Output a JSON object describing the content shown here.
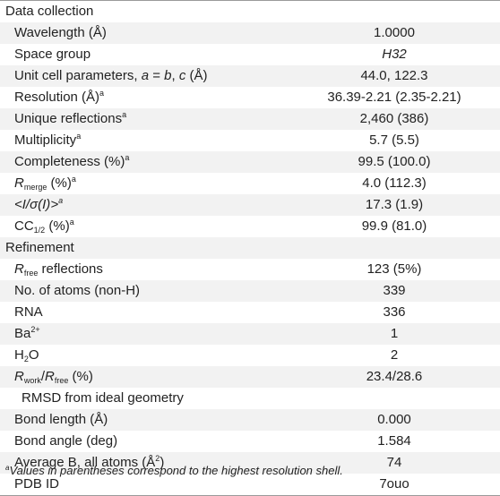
{
  "sections": {
    "data_collection": "Data collection",
    "refinement": "Refinement"
  },
  "rows": {
    "wavelength": {
      "label": "Wavelength (Å)",
      "value": "1.0000"
    },
    "space_group": {
      "label": "Space group",
      "value": "H32"
    },
    "unit_cell": {
      "label_pre": "Unit cell parameters, ",
      "a": "a",
      "eq": " = ",
      "b": "b",
      "comma": ", ",
      "c": "c",
      "unit": " (Å)",
      "value": "44.0, 122.3"
    },
    "resolution": {
      "label": "Resolution (Å)",
      "sup": "a",
      "value": "36.39-2.21 (2.35-2.21)"
    },
    "unique_reflections": {
      "label": "Unique reflections",
      "sup": "a",
      "value": "2,460 (386)"
    },
    "multiplicity": {
      "label": "Multiplicity",
      "sup": "a",
      "value": "5.7 (5.5)"
    },
    "completeness": {
      "label": "Completeness (%)",
      "sup": "a",
      "value": "99.5 (100.0)"
    },
    "rmerge": {
      "R": "R",
      "sub": "merge",
      "unit": " (%)",
      "sup": "a",
      "value": "4.0 (112.3)"
    },
    "i_sigma": {
      "open": "<",
      "body": "I/σ(I)",
      "close": ">",
      "sup": "a",
      "value": "17.3 (1.9)"
    },
    "cc_half": {
      "CC": "CC",
      "sub": "1/2",
      "unit": " (%)",
      "sup": "a",
      "value": "99.9 (81.0)"
    },
    "rfree_reflections": {
      "R": "R",
      "sub": "free",
      "rest": " reflections",
      "value": "123 (5%)"
    },
    "num_atoms": {
      "label": "No. of atoms (non-H)",
      "value": "339"
    },
    "rna": {
      "label": "RNA",
      "value": "336"
    },
    "ba": {
      "label": "Ba",
      "sup": "2+",
      "value": "1"
    },
    "water": {
      "pre": "H",
      "sub": "2",
      "post": "O",
      "value": "2"
    },
    "rwork_rfree": {
      "R1": "R",
      "sub1": "work",
      "slash": "/",
      "R2": "R",
      "sub2": "free",
      "unit": " (%)",
      "value": "23.4/28.6"
    },
    "rmsd": {
      "label": "RMSD from ideal geometry",
      "value": ""
    },
    "bond_length": {
      "label": "Bond length (Å)",
      "value": "0.000"
    },
    "bond_angle": {
      "label": "Bond angle (deg)",
      "value": "1.584"
    },
    "avg_b": {
      "label": "Average B, all atoms (Å",
      "sup": "2",
      "close": ")",
      "value": "74"
    },
    "pdb_id": {
      "label": "PDB ID",
      "value": "7ouo"
    }
  },
  "footnote": {
    "sup": "a",
    "text": "Values in parentheses correspond to the highest resolution shell."
  }
}
